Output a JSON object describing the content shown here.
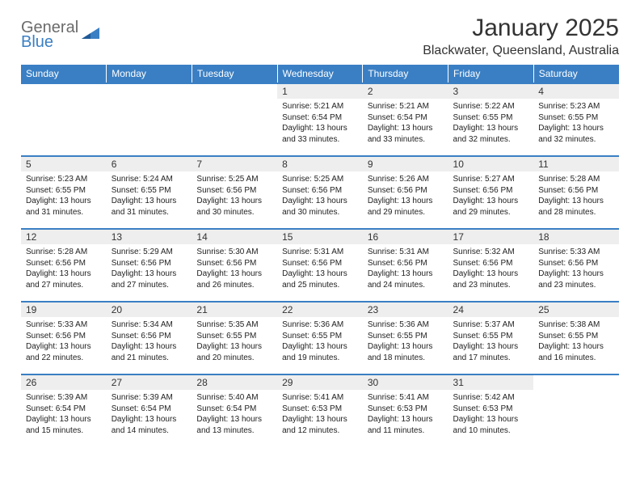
{
  "logo": {
    "text1": "General",
    "text2": "Blue"
  },
  "title": "January 2025",
  "location": "Blackwater, Queensland, Australia",
  "header_bg": "#3a7fc4",
  "weekdays": [
    "Sunday",
    "Monday",
    "Tuesday",
    "Wednesday",
    "Thursday",
    "Friday",
    "Saturday"
  ],
  "weeks": [
    [
      {
        "n": "",
        "sr": "",
        "ss": "",
        "dl": ""
      },
      {
        "n": "",
        "sr": "",
        "ss": "",
        "dl": ""
      },
      {
        "n": "",
        "sr": "",
        "ss": "",
        "dl": ""
      },
      {
        "n": "1",
        "sr": "5:21 AM",
        "ss": "6:54 PM",
        "dl": "13 hours and 33 minutes."
      },
      {
        "n": "2",
        "sr": "5:21 AM",
        "ss": "6:54 PM",
        "dl": "13 hours and 33 minutes."
      },
      {
        "n": "3",
        "sr": "5:22 AM",
        "ss": "6:55 PM",
        "dl": "13 hours and 32 minutes."
      },
      {
        "n": "4",
        "sr": "5:23 AM",
        "ss": "6:55 PM",
        "dl": "13 hours and 32 minutes."
      }
    ],
    [
      {
        "n": "5",
        "sr": "5:23 AM",
        "ss": "6:55 PM",
        "dl": "13 hours and 31 minutes."
      },
      {
        "n": "6",
        "sr": "5:24 AM",
        "ss": "6:55 PM",
        "dl": "13 hours and 31 minutes."
      },
      {
        "n": "7",
        "sr": "5:25 AM",
        "ss": "6:56 PM",
        "dl": "13 hours and 30 minutes."
      },
      {
        "n": "8",
        "sr": "5:25 AM",
        "ss": "6:56 PM",
        "dl": "13 hours and 30 minutes."
      },
      {
        "n": "9",
        "sr": "5:26 AM",
        "ss": "6:56 PM",
        "dl": "13 hours and 29 minutes."
      },
      {
        "n": "10",
        "sr": "5:27 AM",
        "ss": "6:56 PM",
        "dl": "13 hours and 29 minutes."
      },
      {
        "n": "11",
        "sr": "5:28 AM",
        "ss": "6:56 PM",
        "dl": "13 hours and 28 minutes."
      }
    ],
    [
      {
        "n": "12",
        "sr": "5:28 AM",
        "ss": "6:56 PM",
        "dl": "13 hours and 27 minutes."
      },
      {
        "n": "13",
        "sr": "5:29 AM",
        "ss": "6:56 PM",
        "dl": "13 hours and 27 minutes."
      },
      {
        "n": "14",
        "sr": "5:30 AM",
        "ss": "6:56 PM",
        "dl": "13 hours and 26 minutes."
      },
      {
        "n": "15",
        "sr": "5:31 AM",
        "ss": "6:56 PM",
        "dl": "13 hours and 25 minutes."
      },
      {
        "n": "16",
        "sr": "5:31 AM",
        "ss": "6:56 PM",
        "dl": "13 hours and 24 minutes."
      },
      {
        "n": "17",
        "sr": "5:32 AM",
        "ss": "6:56 PM",
        "dl": "13 hours and 23 minutes."
      },
      {
        "n": "18",
        "sr": "5:33 AM",
        "ss": "6:56 PM",
        "dl": "13 hours and 23 minutes."
      }
    ],
    [
      {
        "n": "19",
        "sr": "5:33 AM",
        "ss": "6:56 PM",
        "dl": "13 hours and 22 minutes."
      },
      {
        "n": "20",
        "sr": "5:34 AM",
        "ss": "6:56 PM",
        "dl": "13 hours and 21 minutes."
      },
      {
        "n": "21",
        "sr": "5:35 AM",
        "ss": "6:55 PM",
        "dl": "13 hours and 20 minutes."
      },
      {
        "n": "22",
        "sr": "5:36 AM",
        "ss": "6:55 PM",
        "dl": "13 hours and 19 minutes."
      },
      {
        "n": "23",
        "sr": "5:36 AM",
        "ss": "6:55 PM",
        "dl": "13 hours and 18 minutes."
      },
      {
        "n": "24",
        "sr": "5:37 AM",
        "ss": "6:55 PM",
        "dl": "13 hours and 17 minutes."
      },
      {
        "n": "25",
        "sr": "5:38 AM",
        "ss": "6:55 PM",
        "dl": "13 hours and 16 minutes."
      }
    ],
    [
      {
        "n": "26",
        "sr": "5:39 AM",
        "ss": "6:54 PM",
        "dl": "13 hours and 15 minutes."
      },
      {
        "n": "27",
        "sr": "5:39 AM",
        "ss": "6:54 PM",
        "dl": "13 hours and 14 minutes."
      },
      {
        "n": "28",
        "sr": "5:40 AM",
        "ss": "6:54 PM",
        "dl": "13 hours and 13 minutes."
      },
      {
        "n": "29",
        "sr": "5:41 AM",
        "ss": "6:53 PM",
        "dl": "13 hours and 12 minutes."
      },
      {
        "n": "30",
        "sr": "5:41 AM",
        "ss": "6:53 PM",
        "dl": "13 hours and 11 minutes."
      },
      {
        "n": "31",
        "sr": "5:42 AM",
        "ss": "6:53 PM",
        "dl": "13 hours and 10 minutes."
      },
      {
        "n": "",
        "sr": "",
        "ss": "",
        "dl": ""
      }
    ]
  ],
  "labels": {
    "sunrise": "Sunrise: ",
    "sunset": "Sunset: ",
    "daylight": "Daylight: "
  }
}
